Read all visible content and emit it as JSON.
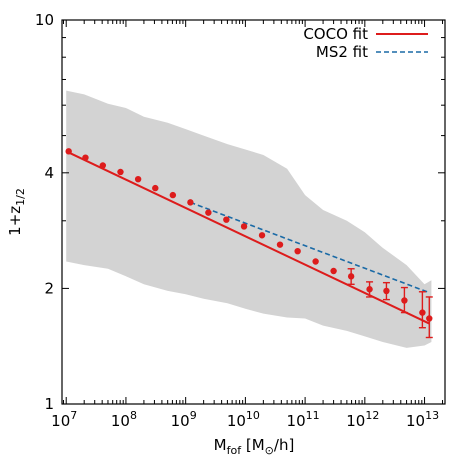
{
  "chart_data": {
    "type": "scatter",
    "xscale": "log",
    "yscale": "log",
    "xlim": [
      8500000.0,
      22000000000000.0
    ],
    "ylim": [
      1,
      10
    ],
    "xlabel": {
      "main": "M",
      "sub": "fof",
      "rest_before": " [M",
      "sun_sub": "⊙",
      "rest_after": "/h]"
    },
    "ylabel": {
      "main": "1+z",
      "sub": "1/2"
    },
    "x_ticks": [
      {
        "value": 10000000.0,
        "base": "10",
        "exp": "7"
      },
      {
        "value": 100000000.0,
        "base": "10",
        "exp": "8"
      },
      {
        "value": 1000000000.0,
        "base": "10",
        "exp": "9"
      },
      {
        "value": 10000000000.0,
        "base": "10",
        "exp": "10"
      },
      {
        "value": 100000000000.0,
        "base": "10",
        "exp": "11"
      },
      {
        "value": 1000000000000.0,
        "base": "10",
        "exp": "12"
      },
      {
        "value": 10000000000000.0,
        "base": "10",
        "exp": "13"
      }
    ],
    "y_ticks": [
      {
        "value": 1,
        "label": "1"
      },
      {
        "value": 2,
        "label": "2"
      },
      {
        "value": 4,
        "label": "4"
      },
      {
        "value": 10,
        "label": "10"
      }
    ],
    "grid": false,
    "legend_position": "top-right",
    "colors": {
      "coco": "#dd1c1c",
      "ms2": "#1a6aa6",
      "band": "#d3d3d3"
    },
    "band": {
      "x": [
        10000000.0,
        20000000.0,
        50000000.0,
        100000000.0,
        200000000.0,
        500000000.0,
        1000000000.0,
        2000000000.0,
        5000000000.0,
        10000000000.0,
        20000000000.0,
        50000000000.0,
        100000000000.0,
        200000000000.0,
        500000000000.0,
        1000000000000.0,
        2000000000000.0,
        5000000000000.0,
        10000000000000.0,
        13000000000000.0
      ],
      "upper": [
        6.55,
        6.4,
        6.05,
        5.9,
        5.6,
        5.4,
        5.2,
        5.0,
        4.75,
        4.6,
        4.45,
        4.1,
        3.5,
        3.2,
        3.0,
        2.8,
        2.55,
        2.3,
        2.05,
        2.1
      ],
      "lower": [
        2.35,
        2.3,
        2.25,
        2.15,
        2.05,
        1.97,
        1.93,
        1.88,
        1.83,
        1.77,
        1.72,
        1.68,
        1.67,
        1.6,
        1.55,
        1.5,
        1.45,
        1.4,
        1.42,
        1.45
      ]
    },
    "series": [
      {
        "name": "COCO fit",
        "style": "solid",
        "color": "#dd1c1c",
        "line": {
          "x": [
            10000000.0,
            12000000000000.0
          ],
          "y": [
            4.55,
            1.62
          ]
        },
        "points": [
          {
            "x": 11000000.0,
            "y": 4.55
          },
          {
            "x": 21000000.0,
            "y": 4.38
          },
          {
            "x": 41000000.0,
            "y": 4.18
          },
          {
            "x": 81000000.0,
            "y": 4.02
          },
          {
            "x": 160000000.0,
            "y": 3.85
          },
          {
            "x": 310000000.0,
            "y": 3.65
          },
          {
            "x": 610000000.0,
            "y": 3.5
          },
          {
            "x": 1200000000.0,
            "y": 3.35
          },
          {
            "x": 2400000000.0,
            "y": 3.15
          },
          {
            "x": 4800000000.0,
            "y": 3.02
          },
          {
            "x": 9500000000.0,
            "y": 2.9
          },
          {
            "x": 19000000000.0,
            "y": 2.75
          },
          {
            "x": 38000000000.0,
            "y": 2.6
          },
          {
            "x": 75000000000.0,
            "y": 2.5
          },
          {
            "x": 150000000000.0,
            "y": 2.35
          },
          {
            "x": 300000000000.0,
            "y": 2.22
          },
          {
            "x": 590000000000.0,
            "y": 2.15,
            "err": [
              0.1,
              0.1
            ]
          },
          {
            "x": 1200000000000.0,
            "y": 1.99,
            "err": [
              0.09,
              0.09
            ]
          },
          {
            "x": 2300000000000.0,
            "y": 1.97,
            "err": [
              0.1,
              0.1
            ]
          },
          {
            "x": 4600000000000.0,
            "y": 1.86,
            "err": [
              0.15,
              0.13
            ]
          },
          {
            "x": 9200000000000.0,
            "y": 1.73,
            "err": [
              0.23,
              0.15
            ]
          },
          {
            "x": 12000000000000.0,
            "y": 1.67,
            "err": [
              0.23,
              0.18
            ]
          }
        ]
      },
      {
        "name": "MS2 fit",
        "style": "dashed",
        "color": "#1a6aa6",
        "line": {
          "x": [
            1200000000.0,
            12000000000000.0
          ],
          "y": [
            3.35,
            1.95
          ]
        }
      }
    ]
  }
}
